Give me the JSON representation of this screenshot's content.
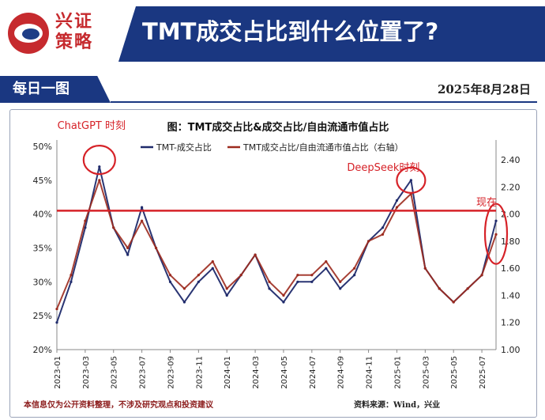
{
  "brand": {
    "name_line1": "兴证",
    "name_line2": "策略"
  },
  "header": {
    "title": "TMT成交占比到什么位置了?"
  },
  "subheader": {
    "tag": "每日一图",
    "date": "2025年8月28日"
  },
  "footer": {
    "disclaimer": "本信息仅为公开资料整理，不涉及研究观点和投资建议",
    "source": "资料来源：Wind，兴业"
  },
  "colors": {
    "navy": "#1a3781",
    "red": "#c62a2e",
    "series_navy": "#1f2a6b",
    "series_red": "#9c2a1e",
    "reference": "#d62228"
  },
  "chart_data": {
    "type": "line",
    "title": "图：TMT成交占比&成交占比/自由流通市值占比",
    "legend_position": "top",
    "x": [
      "2023-01",
      "2023-02",
      "2023-03",
      "2023-04",
      "2023-05",
      "2023-06",
      "2023-07",
      "2023-08",
      "2023-09",
      "2023-10",
      "2023-11",
      "2023-12",
      "2024-01",
      "2024-02",
      "2024-03",
      "2024-04",
      "2024-05",
      "2024-06",
      "2024-07",
      "2024-08",
      "2024-09",
      "2024-10",
      "2024-11",
      "2024-12",
      "2025-01",
      "2025-02",
      "2025-03",
      "2025-04",
      "2025-05",
      "2025-06",
      "2025-07",
      "2025-08"
    ],
    "x_tick_labels": [
      "2023-01",
      "2023-03",
      "2023-05",
      "2023-07",
      "2023-09",
      "2023-11",
      "2024-01",
      "2024-03",
      "2024-05",
      "2024-07",
      "2024-09",
      "2024-11",
      "2025-01",
      "2025-03",
      "2025-05",
      "2025-07"
    ],
    "y_left": {
      "ticks": [
        "20%",
        "25%",
        "30%",
        "35%",
        "40%",
        "45%",
        "50%"
      ],
      "min": 20,
      "max": 50
    },
    "y_right": {
      "ticks": [
        "1.00",
        "1.20",
        "1.40",
        "1.60",
        "1.80",
        "2.00",
        "2.20",
        "2.40"
      ],
      "min": 1.0,
      "max": 2.5
    },
    "reference_line": {
      "axis": "left",
      "value": 40.5
    },
    "series": [
      {
        "name": "TMT-成交占比",
        "axis": "left",
        "color": "#1f2a6b",
        "values": [
          24,
          30,
          38,
          47,
          38,
          34,
          41,
          35,
          30,
          27,
          30,
          32,
          28,
          31,
          34,
          29,
          27,
          30,
          30,
          32,
          29,
          31,
          36,
          38,
          42,
          45,
          32,
          29,
          27,
          29,
          31,
          39
        ]
      },
      {
        "name": "TMT成交占比/自由流通市值占比（右轴）",
        "axis": "right",
        "color": "#9c2a1e",
        "values": [
          1.3,
          1.55,
          1.95,
          2.25,
          1.9,
          1.75,
          1.95,
          1.75,
          1.55,
          1.45,
          1.55,
          1.65,
          1.45,
          1.55,
          1.7,
          1.5,
          1.4,
          1.55,
          1.55,
          1.65,
          1.5,
          1.6,
          1.8,
          1.85,
          2.05,
          2.15,
          1.6,
          1.45,
          1.35,
          1.45,
          1.55,
          1.85
        ]
      }
    ],
    "annotations": [
      {
        "text": "ChatGPT 时刻",
        "at_x": "2023-04",
        "axis": "left",
        "at_y": 48
      },
      {
        "text": "DeepSeek时刻",
        "at_x": "2025-02",
        "axis": "left",
        "at_y": 45
      },
      {
        "text": "现在",
        "at_x": "2025-08",
        "axis": "left",
        "at_y": 40
      }
    ]
  }
}
